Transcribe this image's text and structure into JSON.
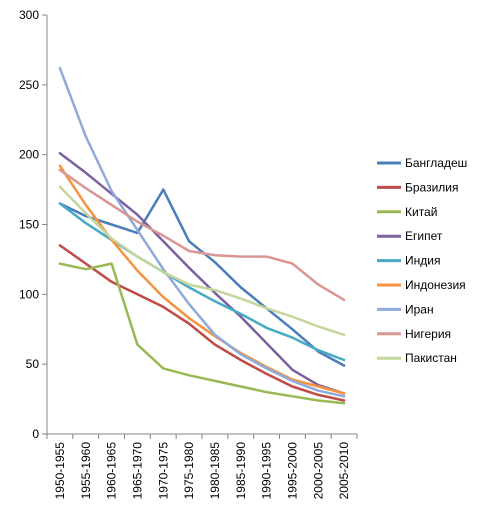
{
  "chart_data": {
    "type": "line",
    "title": "",
    "xlabel": "",
    "ylabel": "",
    "ylim": [
      0,
      300
    ],
    "y_ticks": [
      0,
      50,
      100,
      150,
      200,
      250,
      300
    ],
    "grid": false,
    "legend_position": "right",
    "categories": [
      "1950-1955",
      "1955-1960",
      "1960-1965",
      "1965-1970",
      "1970-1975",
      "1975-1980",
      "1980-1985",
      "1985-1990",
      "1990-1995",
      "1995-2000",
      "2000-2005",
      "2005-2010"
    ],
    "series": [
      {
        "name": "Бангладеш",
        "color": "#4a7ebb",
        "values": [
          165,
          156,
          150,
          144,
          175,
          138,
          123,
          105,
          90,
          75,
          59,
          49
        ]
      },
      {
        "name": "Бразилия",
        "color": "#be4b48",
        "values": [
          135,
          122,
          109,
          100,
          91,
          79,
          64,
          53,
          43,
          34,
          28,
          24
        ]
      },
      {
        "name": "Китай",
        "color": "#98b954",
        "values": [
          122,
          118,
          122,
          64,
          47,
          42,
          38,
          34,
          30,
          27,
          24,
          22
        ]
      },
      {
        "name": "Египет",
        "color": "#7d60a0",
        "values": [
          201,
          187,
          172,
          157,
          138,
          119,
          101,
          84,
          65,
          46,
          35,
          29
        ]
      },
      {
        "name": "Индия",
        "color": "#46aac5",
        "values": [
          165,
          151,
          139,
          127,
          116,
          105,
          95,
          86,
          76,
          69,
          60,
          53
        ]
      },
      {
        "name": "Индонезия",
        "color": "#f69240",
        "values": [
          192,
          164,
          139,
          117,
          98,
          83,
          70,
          58,
          48,
          39,
          34,
          29
        ]
      },
      {
        "name": "Иран",
        "color": "#8eaadb",
        "values": [
          262,
          213,
          174,
          146,
          118,
          93,
          71,
          57,
          47,
          38,
          31,
          27
        ]
      },
      {
        "name": "Нигерия",
        "color": "#d99694",
        "values": [
          189,
          176,
          164,
          152,
          142,
          131,
          128,
          127,
          127,
          122,
          107,
          96
        ]
      },
      {
        "name": "Пакистан",
        "color": "#c3d69b",
        "values": [
          177,
          158,
          140,
          127,
          116,
          107,
          103,
          97,
          90,
          84,
          77,
          71
        ]
      }
    ]
  }
}
